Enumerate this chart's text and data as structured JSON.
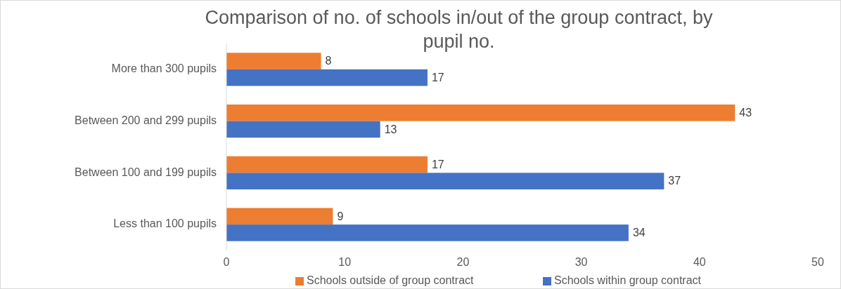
{
  "chart_data": {
    "type": "bar",
    "orientation": "horizontal",
    "title": "Comparison of no. of schools in/out of the group contract, by pupil no.",
    "categories": [
      "More than 300 pupils",
      "Between 200 and 299 pupils",
      "Between 100 and 199 pupils",
      "Less than 100 pupils"
    ],
    "series": [
      {
        "name": "Schools outside of group contract",
        "color": "#ed7d31",
        "values": [
          8,
          43,
          17,
          9
        ]
      },
      {
        "name": "Schools within group contract",
        "color": "#4472c4",
        "values": [
          17,
          13,
          37,
          34
        ]
      }
    ],
    "xlim": [
      0,
      50
    ],
    "xticks": [
      0,
      10,
      20,
      30,
      40,
      50
    ],
    "grid": false,
    "legend": "bottom",
    "data_labels": true
  }
}
